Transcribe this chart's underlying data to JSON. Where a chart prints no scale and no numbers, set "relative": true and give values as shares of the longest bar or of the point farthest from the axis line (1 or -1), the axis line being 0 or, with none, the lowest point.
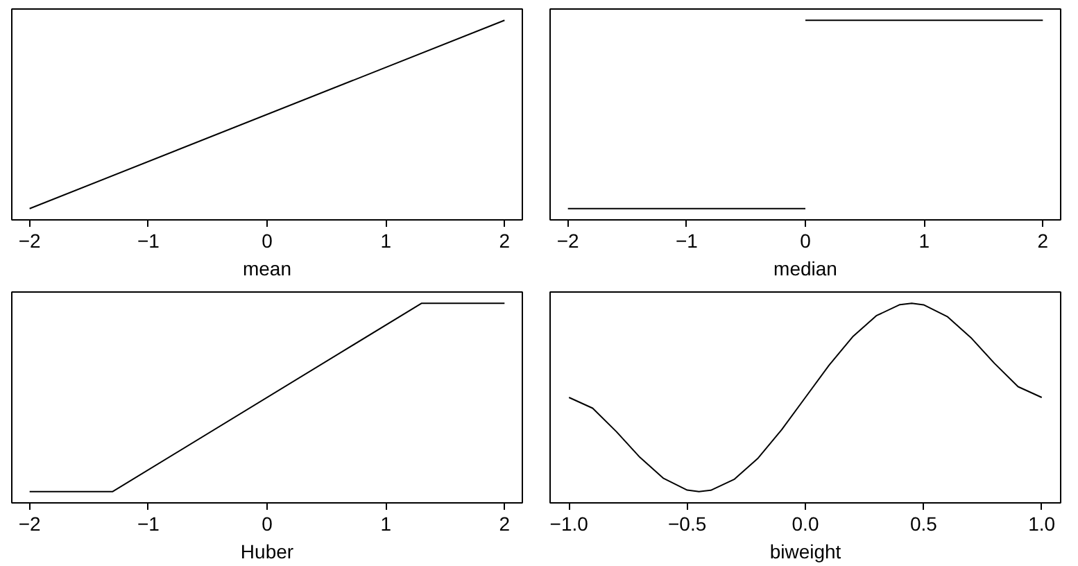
{
  "chart_data": [
    {
      "type": "line",
      "xlabel": "mean",
      "x": [
        -2,
        2
      ],
      "values": [
        0,
        1
      ],
      "color": "#000000",
      "relative": true,
      "xlim": [
        -2.15,
        2.15
      ],
      "xticks": [
        {
          "value": -2,
          "label": "−2"
        },
        {
          "value": -1,
          "label": "−1"
        },
        0,
        1,
        2
      ],
      "tick_labels": "x",
      "grid": false
    },
    {
      "type": "line",
      "xlabel": "median",
      "x": [
        -2,
        0,
        null,
        0,
        2
      ],
      "values": [
        0,
        0,
        null,
        1,
        1
      ],
      "color": "#000000",
      "relative": true,
      "xlim": [
        -2.15,
        2.15
      ],
      "xticks": [
        {
          "value": -2,
          "label": "−2"
        },
        {
          "value": -1,
          "label": "−1"
        },
        0,
        1,
        2
      ],
      "tick_labels": "x",
      "grid": false
    },
    {
      "type": "line",
      "xlabel": "Huber",
      "x": [
        -2,
        -1.3,
        1.3,
        2
      ],
      "values": [
        0,
        0,
        1,
        1
      ],
      "color": "#000000",
      "relative": true,
      "xlim": [
        -2.15,
        2.15
      ],
      "xticks": [
        {
          "value": -2,
          "label": "−2"
        },
        {
          "value": -1,
          "label": "−1"
        },
        0,
        1,
        2
      ],
      "tick_labels": "x",
      "grid": false
    },
    {
      "type": "line",
      "xlabel": "biweight",
      "x": [
        -1,
        -0.9,
        -0.8,
        -0.7,
        -0.6,
        -0.5,
        -0.45,
        -0.4,
        -0.3,
        -0.2,
        -0.1,
        0,
        0.1,
        0.2,
        0.3,
        0.4,
        0.45,
        0.5,
        0.6,
        0.7,
        0.8,
        0.9,
        1
      ],
      "values": [
        0.5,
        0.443,
        0.319,
        0.182,
        0.07,
        0.008,
        0,
        0.007,
        0.066,
        0.178,
        0.329,
        0.5,
        0.671,
        0.822,
        0.934,
        0.993,
        1,
        0.992,
        0.93,
        0.818,
        0.681,
        0.557,
        0.5
      ],
      "color": "#000000",
      "relative": true,
      "xlim": [
        -1.08,
        1.08
      ],
      "xticks": [
        {
          "value": -1,
          "label": "−1.0"
        },
        {
          "value": -0.5,
          "label": "−0.5"
        },
        {
          "value": 0,
          "label": "0.0"
        },
        {
          "value": 0.5,
          "label": "0.5"
        },
        {
          "value": 1,
          "label": "1.0"
        }
      ],
      "tick_labels": "x",
      "grid": false
    }
  ]
}
